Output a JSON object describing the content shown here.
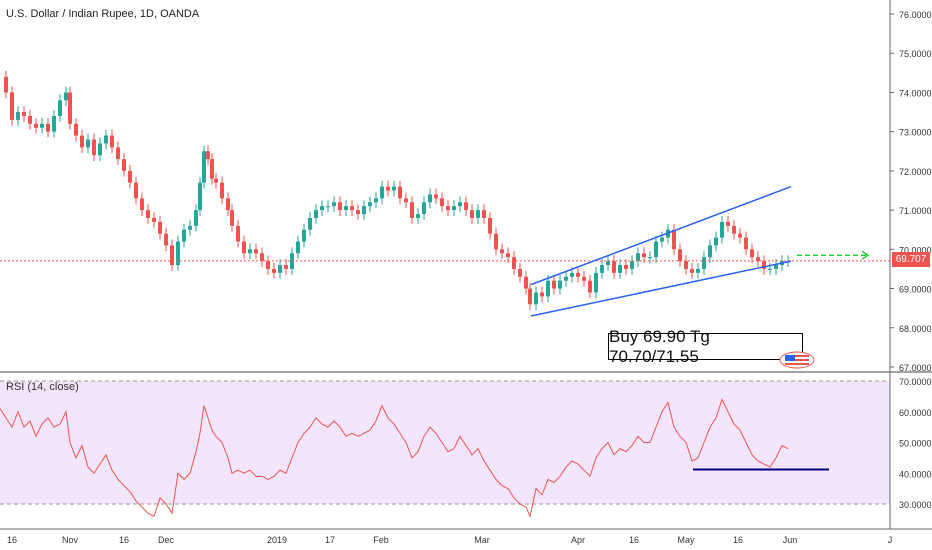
{
  "header": {
    "title": "U.S. Dollar / Indian Rupee, 1D, OANDA"
  },
  "rsi": {
    "label": "RSI (14, close)",
    "ticks": [
      "70.0000",
      "60.0000",
      "50.0000",
      "40.0000",
      "30.0000"
    ]
  },
  "annotation": {
    "text": "Buy 69.90 Tg 70.70/71.55"
  },
  "price_tag": {
    "value": "69.707",
    "color": "#ef5350"
  },
  "colors": {
    "up": "#26a69a",
    "down": "#ef5350",
    "trendline": "#2962ff",
    "rsi": "#ef5350",
    "rsi_band": "#f3e5fb",
    "target_arrow": "#2ecc40",
    "support": "#000080"
  },
  "chart_data": [
    {
      "type": "candlestick",
      "title": "U.S. Dollar / Indian Rupee, 1D, OANDA",
      "ylim": [
        67.0,
        76.0
      ],
      "y_ticks": [
        "76.0000",
        "75.0000",
        "74.0000",
        "73.0000",
        "72.0000",
        "71.0000",
        "70.0000",
        "69.0000",
        "68.0000",
        "67.0000"
      ],
      "x_ticks": [
        "16",
        "Nov",
        "16",
        "Dec",
        "2019",
        "17",
        "Feb",
        "Mar",
        "Apr",
        "16",
        "May",
        "16",
        "Jun",
        "J"
      ],
      "last_price": 69.707,
      "close_path": [
        [
          0,
          74.4
        ],
        [
          6,
          74.0
        ],
        [
          12,
          73.3
        ],
        [
          18,
          73.5
        ],
        [
          24,
          73.4
        ],
        [
          30,
          73.2
        ],
        [
          36,
          73.1
        ],
        [
          42,
          73.2
        ],
        [
          48,
          73.0
        ],
        [
          54,
          73.4
        ],
        [
          60,
          73.8
        ],
        [
          66,
          74.0
        ],
        [
          70,
          73.2
        ],
        [
          76,
          72.9
        ],
        [
          82,
          72.6
        ],
        [
          88,
          72.8
        ],
        [
          94,
          72.4
        ],
        [
          100,
          72.7
        ],
        [
          106,
          72.9
        ],
        [
          112,
          72.6
        ],
        [
          118,
          72.3
        ],
        [
          124,
          72.0
        ],
        [
          130,
          71.7
        ],
        [
          136,
          71.3
        ],
        [
          142,
          71.0
        ],
        [
          148,
          70.8
        ],
        [
          154,
          70.7
        ],
        [
          160,
          70.4
        ],
        [
          166,
          70.1
        ],
        [
          172,
          69.6
        ],
        [
          178,
          70.2
        ],
        [
          184,
          70.5
        ],
        [
          190,
          70.6
        ],
        [
          196,
          71.0
        ],
        [
          200,
          71.7
        ],
        [
          204,
          72.5
        ],
        [
          208,
          72.3
        ],
        [
          212,
          71.8
        ],
        [
          216,
          71.7
        ],
        [
          222,
          71.3
        ],
        [
          228,
          71.0
        ],
        [
          232,
          70.6
        ],
        [
          238,
          70.2
        ],
        [
          244,
          69.9
        ],
        [
          250,
          70.0
        ],
        [
          256,
          69.9
        ],
        [
          262,
          69.7
        ],
        [
          268,
          69.5
        ],
        [
          274,
          69.4
        ],
        [
          280,
          69.6
        ],
        [
          286,
          69.5
        ],
        [
          292,
          69.9
        ],
        [
          298,
          70.2
        ],
        [
          304,
          70.5
        ],
        [
          310,
          70.8
        ],
        [
          316,
          71.0
        ],
        [
          322,
          71.1
        ],
        [
          328,
          71.1
        ],
        [
          334,
          71.2
        ],
        [
          340,
          71.0
        ],
        [
          346,
          71.1
        ],
        [
          352,
          71.0
        ],
        [
          358,
          70.9
        ],
        [
          364,
          71.1
        ],
        [
          370,
          71.2
        ],
        [
          376,
          71.3
        ],
        [
          382,
          71.6
        ],
        [
          388,
          71.5
        ],
        [
          394,
          71.6
        ],
        [
          400,
          71.3
        ],
        [
          406,
          71.2
        ],
        [
          412,
          70.8
        ],
        [
          418,
          70.9
        ],
        [
          424,
          71.2
        ],
        [
          430,
          71.4
        ],
        [
          436,
          71.3
        ],
        [
          442,
          71.1
        ],
        [
          448,
          71.0
        ],
        [
          454,
          71.1
        ],
        [
          460,
          71.2
        ],
        [
          466,
          71.0
        ],
        [
          472,
          70.8
        ],
        [
          478,
          71.0
        ],
        [
          484,
          70.8
        ],
        [
          490,
          70.4
        ],
        [
          496,
          70.0
        ],
        [
          502,
          69.9
        ],
        [
          508,
          69.8
        ],
        [
          514,
          69.5
        ],
        [
          520,
          69.3
        ],
        [
          526,
          69.0
        ],
        [
          530,
          68.6
        ],
        [
          536,
          68.9
        ],
        [
          542,
          68.8
        ],
        [
          548,
          69.2
        ],
        [
          554,
          69.0
        ],
        [
          560,
          69.2
        ],
        [
          566,
          69.3
        ],
        [
          572,
          69.4
        ],
        [
          578,
          69.3
        ],
        [
          584,
          69.2
        ],
        [
          590,
          68.9
        ],
        [
          596,
          69.4
        ],
        [
          602,
          69.6
        ],
        [
          608,
          69.7
        ],
        [
          614,
          69.4
        ],
        [
          620,
          69.6
        ],
        [
          626,
          69.5
        ],
        [
          632,
          69.7
        ],
        [
          638,
          69.9
        ],
        [
          644,
          69.8
        ],
        [
          650,
          69.8
        ],
        [
          656,
          70.2
        ],
        [
          662,
          70.3
        ],
        [
          668,
          70.5
        ],
        [
          674,
          70.0
        ],
        [
          680,
          69.7
        ],
        [
          686,
          69.5
        ],
        [
          692,
          69.4
        ],
        [
          698,
          69.5
        ],
        [
          704,
          69.8
        ],
        [
          710,
          70.1
        ],
        [
          716,
          70.3
        ],
        [
          722,
          70.7
        ],
        [
          728,
          70.6
        ],
        [
          734,
          70.4
        ],
        [
          740,
          70.3
        ],
        [
          746,
          70.0
        ],
        [
          752,
          69.8
        ],
        [
          758,
          69.7
        ],
        [
          764,
          69.5
        ],
        [
          770,
          69.5
        ],
        [
          776,
          69.6
        ],
        [
          782,
          69.7
        ],
        [
          788,
          69.7
        ]
      ],
      "trendlines": [
        {
          "name": "wedge-upper",
          "from": [
            531,
            69.1
          ],
          "to": [
            791,
            71.6
          ]
        },
        {
          "name": "wedge-lower",
          "from": [
            531,
            68.3
          ],
          "to": [
            791,
            69.7
          ]
        }
      ],
      "target_arrow": {
        "from": [
          797,
          69.85
        ],
        "to": [
          868,
          69.85
        ]
      }
    },
    {
      "type": "line",
      "title": "RSI (14, close)",
      "ylim": [
        25,
        70
      ],
      "band": [
        30,
        70
      ],
      "values_path": [
        [
          0,
          61
        ],
        [
          6,
          58
        ],
        [
          12,
          55
        ],
        [
          18,
          60
        ],
        [
          24,
          55
        ],
        [
          30,
          57
        ],
        [
          36,
          52
        ],
        [
          42,
          56
        ],
        [
          48,
          58
        ],
        [
          54,
          55
        ],
        [
          60,
          56
        ],
        [
          66,
          60
        ],
        [
          70,
          50
        ],
        [
          76,
          45
        ],
        [
          82,
          49
        ],
        [
          88,
          42
        ],
        [
          94,
          40
        ],
        [
          100,
          43
        ],
        [
          106,
          46
        ],
        [
          112,
          41
        ],
        [
          118,
          38
        ],
        [
          124,
          36
        ],
        [
          130,
          34
        ],
        [
          136,
          31
        ],
        [
          142,
          29
        ],
        [
          148,
          27
        ],
        [
          154,
          26
        ],
        [
          160,
          32
        ],
        [
          166,
          30
        ],
        [
          172,
          27
        ],
        [
          178,
          40
        ],
        [
          184,
          38
        ],
        [
          190,
          40
        ],
        [
          196,
          47
        ],
        [
          200,
          53
        ],
        [
          204,
          62
        ],
        [
          208,
          58
        ],
        [
          212,
          54
        ],
        [
          216,
          52
        ],
        [
          222,
          50
        ],
        [
          228,
          45
        ],
        [
          232,
          40
        ],
        [
          238,
          41
        ],
        [
          244,
          40
        ],
        [
          250,
          41
        ],
        [
          256,
          39
        ],
        [
          262,
          39
        ],
        [
          268,
          38
        ],
        [
          274,
          39
        ],
        [
          280,
          41
        ],
        [
          286,
          40
        ],
        [
          292,
          45
        ],
        [
          298,
          50
        ],
        [
          304,
          53
        ],
        [
          310,
          55
        ],
        [
          316,
          58
        ],
        [
          322,
          56
        ],
        [
          328,
          55
        ],
        [
          334,
          57
        ],
        [
          340,
          55
        ],
        [
          346,
          52
        ],
        [
          352,
          53
        ],
        [
          358,
          52
        ],
        [
          364,
          53
        ],
        [
          370,
          54
        ],
        [
          376,
          57
        ],
        [
          382,
          62
        ],
        [
          388,
          58
        ],
        [
          394,
          56
        ],
        [
          400,
          53
        ],
        [
          406,
          50
        ],
        [
          412,
          45
        ],
        [
          418,
          47
        ],
        [
          424,
          52
        ],
        [
          430,
          55
        ],
        [
          436,
          53
        ],
        [
          442,
          50
        ],
        [
          448,
          47
        ],
        [
          454,
          48
        ],
        [
          460,
          52
        ],
        [
          466,
          49
        ],
        [
          472,
          46
        ],
        [
          478,
          48
        ],
        [
          484,
          44
        ],
        [
          490,
          41
        ],
        [
          496,
          38
        ],
        [
          502,
          36
        ],
        [
          508,
          35
        ],
        [
          514,
          32
        ],
        [
          520,
          30
        ],
        [
          526,
          29
        ],
        [
          530,
          26
        ],
        [
          536,
          35
        ],
        [
          542,
          33
        ],
        [
          548,
          38
        ],
        [
          554,
          37
        ],
        [
          560,
          39
        ],
        [
          566,
          42
        ],
        [
          572,
          44
        ],
        [
          578,
          43
        ],
        [
          584,
          41
        ],
        [
          590,
          39
        ],
        [
          596,
          45
        ],
        [
          602,
          48
        ],
        [
          608,
          50
        ],
        [
          614,
          46
        ],
        [
          620,
          48
        ],
        [
          626,
          47
        ],
        [
          632,
          49
        ],
        [
          638,
          52
        ],
        [
          644,
          50
        ],
        [
          650,
          50
        ],
        [
          656,
          55
        ],
        [
          662,
          60
        ],
        [
          668,
          63
        ],
        [
          674,
          55
        ],
        [
          680,
          52
        ],
        [
          686,
          50
        ],
        [
          692,
          44
        ],
        [
          698,
          45
        ],
        [
          704,
          50
        ],
        [
          710,
          55
        ],
        [
          716,
          58
        ],
        [
          722,
          64
        ],
        [
          728,
          60
        ],
        [
          734,
          56
        ],
        [
          740,
          54
        ],
        [
          746,
          50
        ],
        [
          752,
          46
        ],
        [
          758,
          44
        ],
        [
          764,
          43
        ],
        [
          770,
          42
        ],
        [
          776,
          45
        ],
        [
          782,
          49
        ],
        [
          788,
          48
        ]
      ],
      "support_line": {
        "from": [
          693,
          41.2
        ],
        "to": [
          829,
          41.2
        ]
      }
    }
  ]
}
